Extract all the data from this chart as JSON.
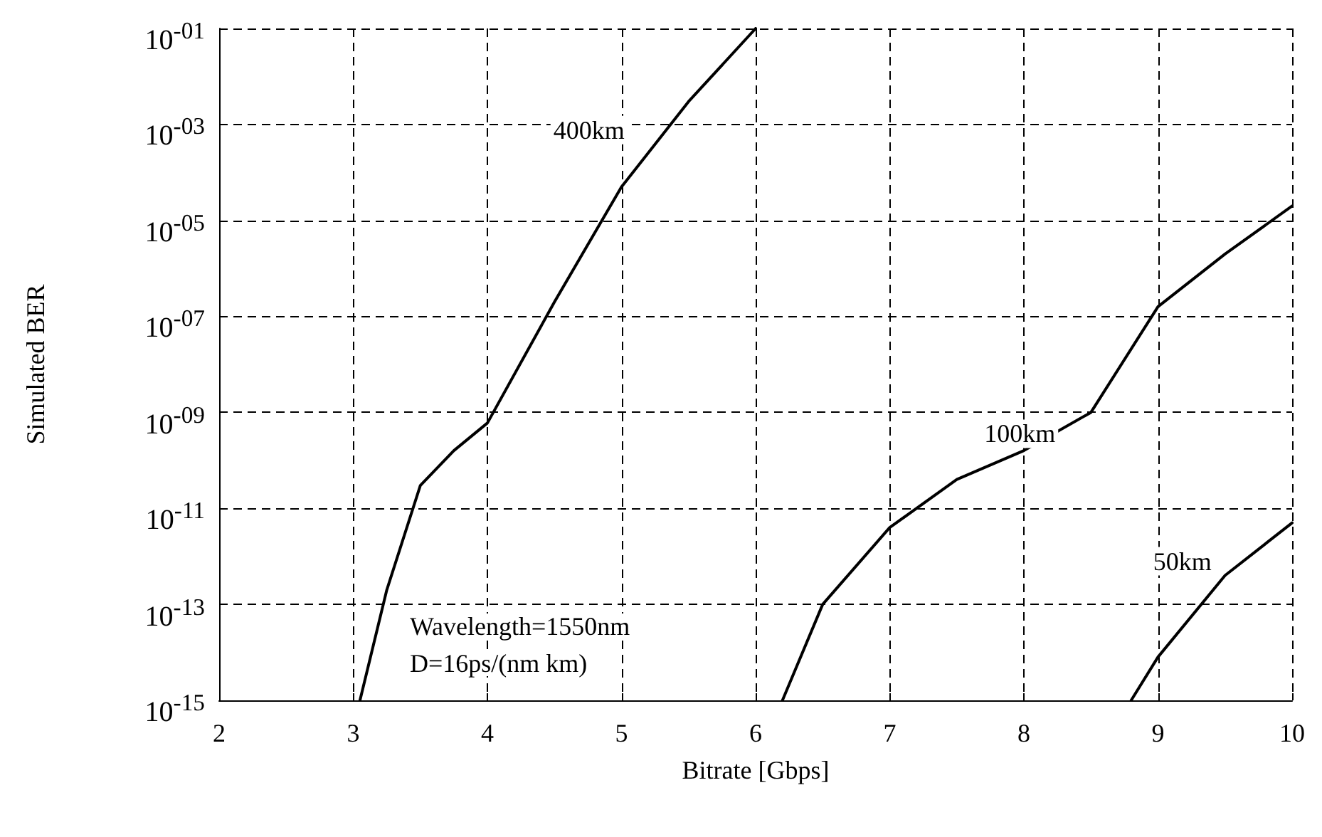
{
  "chart_data": {
    "type": "line",
    "xlabel": "Bitrate [Gbps]",
    "ylabel": "Simulated BER",
    "log": "y",
    "grid": true,
    "marker": "none",
    "line_style": "solid",
    "xlim": [
      2,
      10
    ],
    "xticks": [
      2,
      3,
      4,
      5,
      6,
      7,
      8,
      9,
      10
    ],
    "ylim": [
      1e-15,
      0.1
    ],
    "yticks": [
      {
        "value": 1e-15,
        "label": "10$^{-15}$"
      },
      {
        "value": 1e-13,
        "label": "10$^{-13}$"
      },
      {
        "value": 1e-11,
        "label": "10$^{-11}$"
      },
      {
        "value": 1e-09,
        "label": "10$^{-09}$"
      },
      {
        "value": 1e-07,
        "label": "10$^{-07}$"
      },
      {
        "value": 1e-05,
        "label": "10$^{-05}$"
      },
      {
        "value": 0.001,
        "label": "10$^{-03}$"
      },
      {
        "value": 0.1,
        "label": "10$^{-01}$"
      }
    ],
    "series": [
      {
        "name": "400km",
        "color": "#000000",
        "x": [
          3.05,
          3.25,
          3.5,
          3.75,
          4.0,
          4.5,
          5.0,
          5.5,
          6.0
        ],
        "values": [
          1e-15,
          2e-13,
          3e-11,
          1.6e-10,
          6e-10,
          2e-07,
          5e-05,
          0.003,
          0.1
        ]
      },
      {
        "name": "100km",
        "color": "#000000",
        "x": [
          6.2,
          6.5,
          7.0,
          7.5,
          8.0,
          8.5,
          9.0,
          9.5,
          10.0
        ],
        "values": [
          1e-15,
          1e-13,
          4e-12,
          4e-11,
          1.6e-10,
          1e-09,
          1.6e-07,
          2e-06,
          2e-05
        ]
      },
      {
        "name": "50km",
        "color": "#000000",
        "x": [
          8.8,
          9.0,
          9.5,
          10.0
        ],
        "values": [
          1e-15,
          8e-15,
          4e-13,
          5e-12
        ]
      }
    ],
    "annotations": [
      "Wavelength=1550nm",
      "D=16ps/(nm km)"
    ]
  }
}
